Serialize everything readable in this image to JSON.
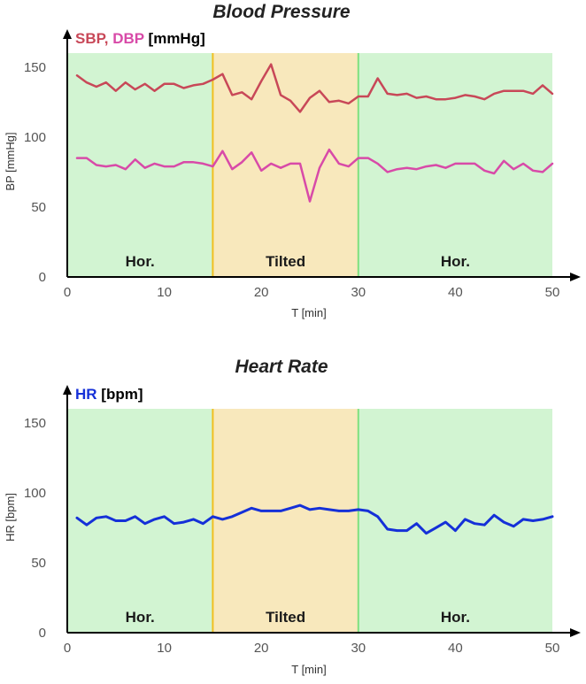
{
  "colors": {
    "sbp": "#c84858",
    "dbp": "#d84aa8",
    "hr": "#1530d8",
    "horizontal_bg": "#d2f4d2",
    "tilted_bg": "#f8e8bc",
    "tilt_start_line": "#f0c020",
    "tilt_end_line": "#80e080",
    "axis": "#000000"
  },
  "chart_data": [
    {
      "type": "line",
      "title": "Blood Pressure",
      "ylabel": "BP [mmHg]",
      "xlabel": "T [min]",
      "units_label": {
        "parts": [
          "SBP",
          ", ",
          "DBP",
          " [mmHg]"
        ]
      },
      "xlim": [
        0,
        50
      ],
      "ylim": [
        0,
        150
      ],
      "x_ticks": [
        0,
        10,
        20,
        30,
        40,
        50
      ],
      "y_ticks": [
        0,
        50,
        100,
        150
      ],
      "plot_top_value": 160,
      "grid": false,
      "regions": [
        {
          "label": "Hor.",
          "x_start": 0,
          "x_end": 15,
          "color_key": "horizontal_bg"
        },
        {
          "label": "Tilted",
          "x_start": 15,
          "x_end": 30,
          "color_key": "tilted_bg"
        },
        {
          "label": "Hor.",
          "x_start": 30,
          "x_end": 50,
          "color_key": "horizontal_bg"
        }
      ],
      "series": [
        {
          "name": "SBP",
          "color_key": "sbp",
          "x": [
            1,
            2,
            3,
            4,
            5,
            6,
            7,
            8,
            9,
            10,
            11,
            12,
            13,
            14,
            15,
            16,
            17,
            18,
            19,
            20,
            21,
            22,
            23,
            24,
            25,
            26,
            27,
            28,
            29,
            30,
            31,
            32,
            33,
            34,
            35,
            36,
            37,
            38,
            39,
            40,
            41,
            42,
            43,
            44,
            45,
            46,
            47,
            48,
            49,
            50
          ],
          "values": [
            144,
            139,
            136,
            139,
            133,
            139,
            134,
            138,
            133,
            138,
            138,
            135,
            137,
            138,
            141,
            145,
            130,
            132,
            127,
            140,
            152,
            130,
            126,
            118,
            128,
            133,
            125,
            126,
            124,
            129,
            129,
            142,
            131,
            130,
            131,
            128,
            129,
            127,
            127,
            128,
            130,
            129,
            127,
            131,
            133,
            133,
            133,
            131,
            137,
            131
          ]
        },
        {
          "name": "DBP",
          "color_key": "dbp",
          "x": [
            1,
            2,
            3,
            4,
            5,
            6,
            7,
            8,
            9,
            10,
            11,
            12,
            13,
            14,
            15,
            16,
            17,
            18,
            19,
            20,
            21,
            22,
            23,
            24,
            25,
            26,
            27,
            28,
            29,
            30,
            31,
            32,
            33,
            34,
            35,
            36,
            37,
            38,
            39,
            40,
            41,
            42,
            43,
            44,
            45,
            46,
            47,
            48,
            49,
            50
          ],
          "values": [
            85,
            85,
            80,
            79,
            80,
            77,
            84,
            78,
            81,
            79,
            79,
            82,
            82,
            81,
            79,
            90,
            77,
            82,
            89,
            76,
            81,
            78,
            81,
            81,
            54,
            78,
            91,
            81,
            79,
            85,
            85,
            81,
            75,
            77,
            78,
            77,
            79,
            80,
            78,
            81,
            81,
            81,
            76,
            74,
            83,
            77,
            81,
            76,
            75,
            81
          ]
        }
      ]
    },
    {
      "type": "line",
      "title": "Heart Rate",
      "ylabel": "HR [bpm]",
      "xlabel": "T [min]",
      "units_label": {
        "parts": [
          "HR",
          " [bpm]"
        ]
      },
      "xlim": [
        0,
        50
      ],
      "ylim": [
        0,
        150
      ],
      "x_ticks": [
        0,
        10,
        20,
        30,
        40,
        50
      ],
      "y_ticks": [
        0,
        50,
        100,
        150
      ],
      "plot_top_value": 160,
      "grid": false,
      "regions": [
        {
          "label": "Hor.",
          "x_start": 0,
          "x_end": 15,
          "color_key": "horizontal_bg"
        },
        {
          "label": "Tilted",
          "x_start": 15,
          "x_end": 30,
          "color_key": "tilted_bg"
        },
        {
          "label": "Hor.",
          "x_start": 30,
          "x_end": 50,
          "color_key": "horizontal_bg"
        }
      ],
      "series": [
        {
          "name": "HR",
          "color_key": "hr",
          "x": [
            1,
            2,
            3,
            4,
            5,
            6,
            7,
            8,
            9,
            10,
            11,
            12,
            13,
            14,
            15,
            16,
            17,
            18,
            19,
            20,
            21,
            22,
            23,
            24,
            25,
            26,
            27,
            28,
            29,
            30,
            31,
            32,
            33,
            34,
            35,
            36,
            37,
            38,
            39,
            40,
            41,
            42,
            43,
            44,
            45,
            46,
            47,
            48,
            49,
            50
          ],
          "values": [
            82,
            77,
            82,
            83,
            80,
            80,
            83,
            78,
            81,
            83,
            78,
            79,
            81,
            78,
            83,
            81,
            83,
            86,
            89,
            87,
            87,
            87,
            89,
            91,
            88,
            89,
            88,
            87,
            87,
            88,
            87,
            83,
            74,
            73,
            73,
            78,
            71,
            75,
            79,
            73,
            81,
            78,
            77,
            84,
            79,
            76,
            81,
            80,
            81,
            83
          ]
        }
      ]
    }
  ]
}
